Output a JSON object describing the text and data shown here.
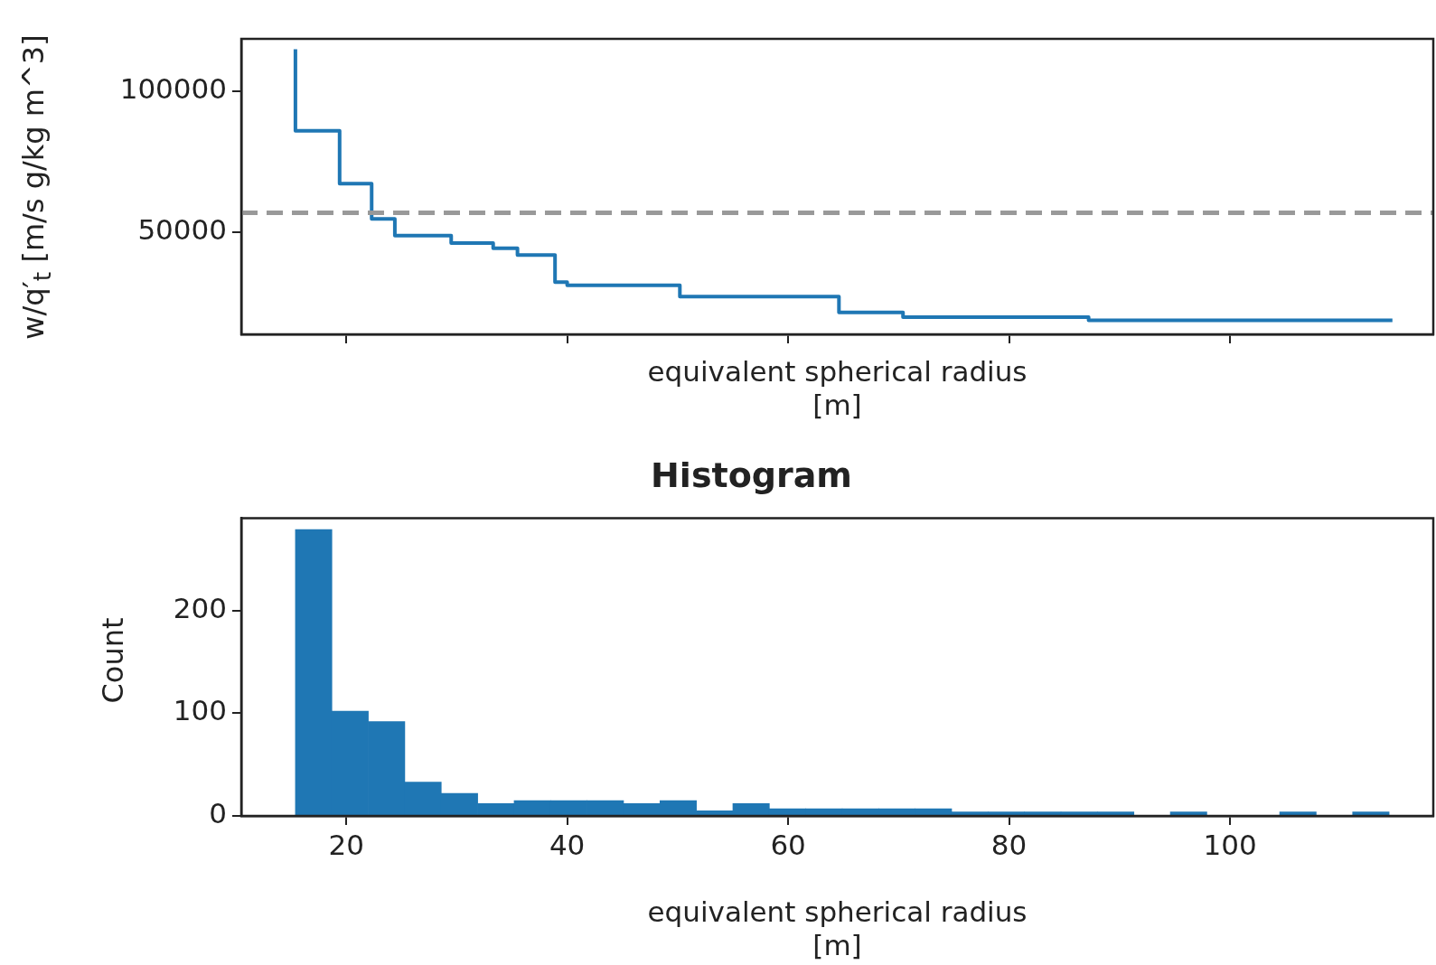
{
  "chart_data": [
    {
      "type": "step",
      "xlabel": "equivalent spherical radius\n[m]",
      "ylabel": "w/q′$_{t}$ [m/s g/kg m^3]",
      "x": [
        15.4,
        19.4,
        22.3,
        24.4,
        29.5,
        33.3,
        35.5,
        38.9,
        40.0,
        50.2,
        64.6,
        70.4,
        87.2,
        114.7
      ],
      "series": [
        {
          "color": "#1f77b4",
          "values": [
            115000,
            86000,
            67200,
            54700,
            48700,
            46100,
            44200,
            41800,
            32200,
            31000,
            27000,
            21400,
            19700,
            18600
          ]
        }
      ],
      "xlim": [
        10.5,
        118.4
      ],
      "xticks": [
        20,
        40,
        60,
        80,
        100
      ],
      "ylim": [
        13600,
        118700
      ],
      "yticks": [
        50000,
        100000
      ],
      "tick_labels": "y",
      "ref_lines": [
        {
          "axis": "y",
          "value": 56800,
          "color": "#999999",
          "line_style": "dashed"
        }
      ]
    },
    {
      "type": "histogram",
      "title": "Histogram",
      "xlabel": "equivalent spherical radius\n[m]",
      "ylabel": "Count",
      "color": "#1f77b4",
      "bins": [
        15.4,
        18.7,
        22.0,
        25.3,
        28.6,
        31.9,
        35.2,
        38.5,
        41.8,
        45.1,
        48.4,
        51.7,
        55.0,
        58.3,
        61.6,
        64.9,
        68.2,
        71.5,
        74.8,
        78.1,
        81.4,
        84.7,
        88.0,
        91.3,
        94.6,
        97.9,
        101.2,
        104.5,
        107.8,
        111.1,
        114.4
      ],
      "values": [
        279,
        102,
        92,
        33,
        22,
        12,
        15,
        15,
        15,
        12,
        15,
        5,
        12,
        7,
        7,
        7,
        7,
        7,
        4,
        4,
        4,
        4,
        4,
        0,
        4,
        0,
        0,
        4,
        0,
        4
      ],
      "xlim": [
        10.5,
        118.4
      ],
      "xticks": [
        20,
        40,
        60,
        80,
        100
      ],
      "ylim": [
        0,
        290
      ],
      "yticks": [
        0,
        100,
        200
      ]
    }
  ]
}
